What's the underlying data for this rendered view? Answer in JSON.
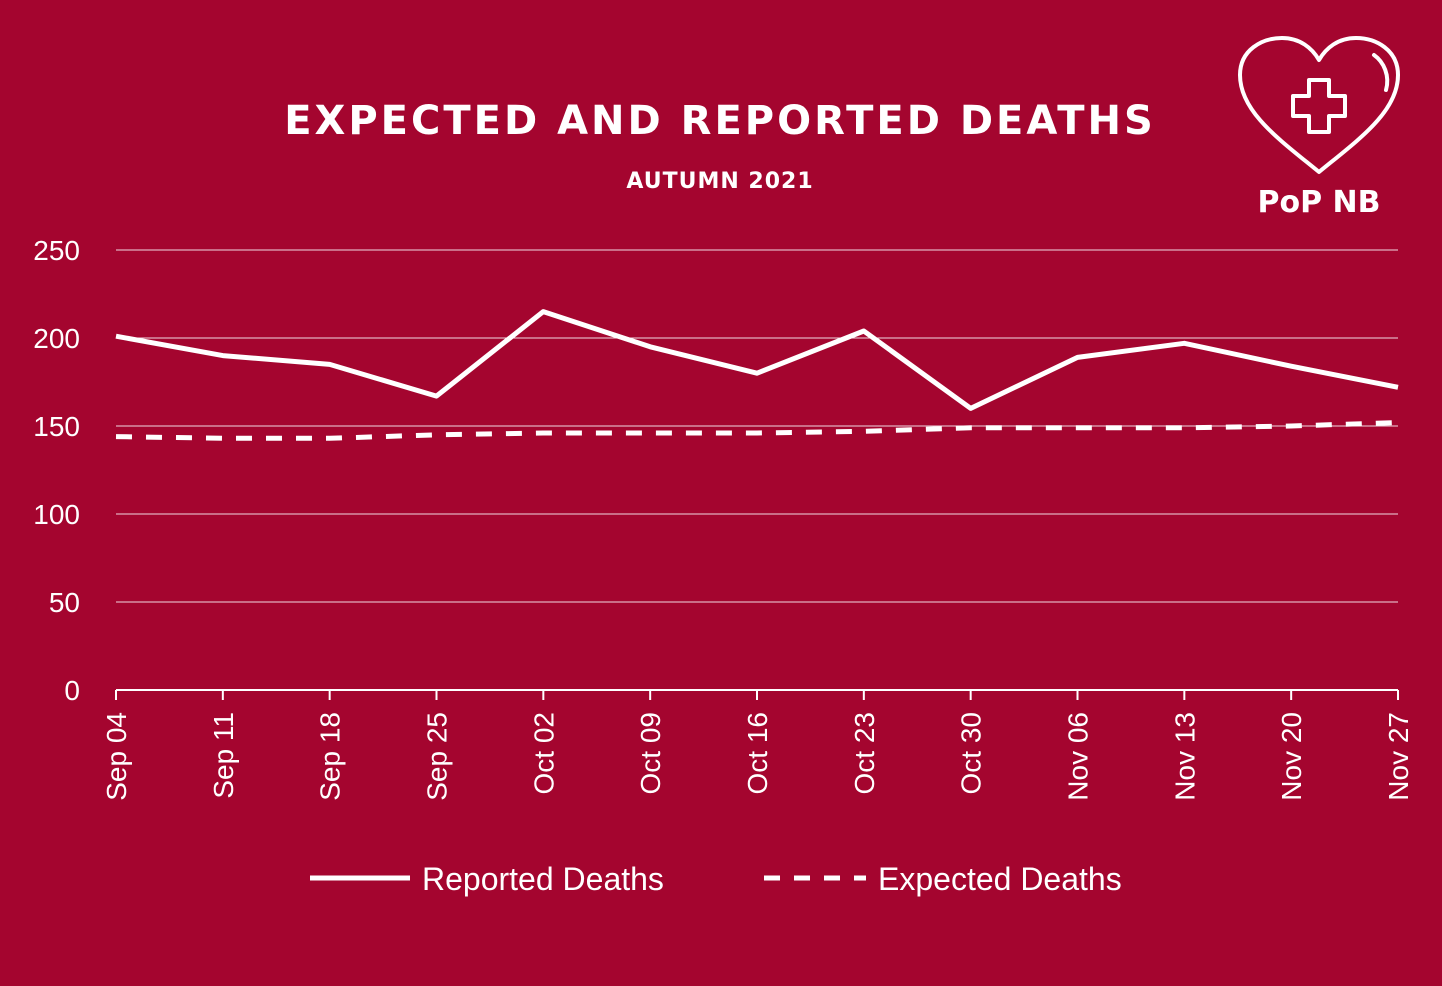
{
  "header": {
    "title": "EXPECTED AND REPORTED DEATHS",
    "subtitle": "AUTUMN 2021"
  },
  "logo": {
    "text": "PoP NB",
    "icon": "heart-cross-icon"
  },
  "colors": {
    "background": "#a4052f",
    "foreground": "#ffffff"
  },
  "chart_data": {
    "type": "line",
    "title": "EXPECTED AND REPORTED DEATHS",
    "subtitle": "AUTUMN 2021",
    "xlabel": "",
    "ylabel": "",
    "categories": [
      "Sep 04",
      "Sep 11",
      "Sep 18",
      "Sep 25",
      "Oct 02",
      "Oct 09",
      "Oct 16",
      "Oct 23",
      "Oct 30",
      "Nov 06",
      "Nov 13",
      "Nov 20",
      "Nov 27"
    ],
    "series": [
      {
        "name": "Reported Deaths",
        "style": "solid",
        "values": [
          201,
          190,
          185,
          167,
          215,
          195,
          180,
          204,
          160,
          189,
          197,
          184,
          172
        ]
      },
      {
        "name": "Expected Deaths",
        "style": "dashed",
        "values": [
          144,
          143,
          143,
          145,
          146,
          146,
          146,
          147,
          149,
          149,
          149,
          150,
          152
        ]
      }
    ],
    "ylim": [
      0,
      250
    ],
    "yticks": [
      0,
      50,
      100,
      150,
      200,
      250
    ],
    "grid": true,
    "legend": "bottom"
  }
}
